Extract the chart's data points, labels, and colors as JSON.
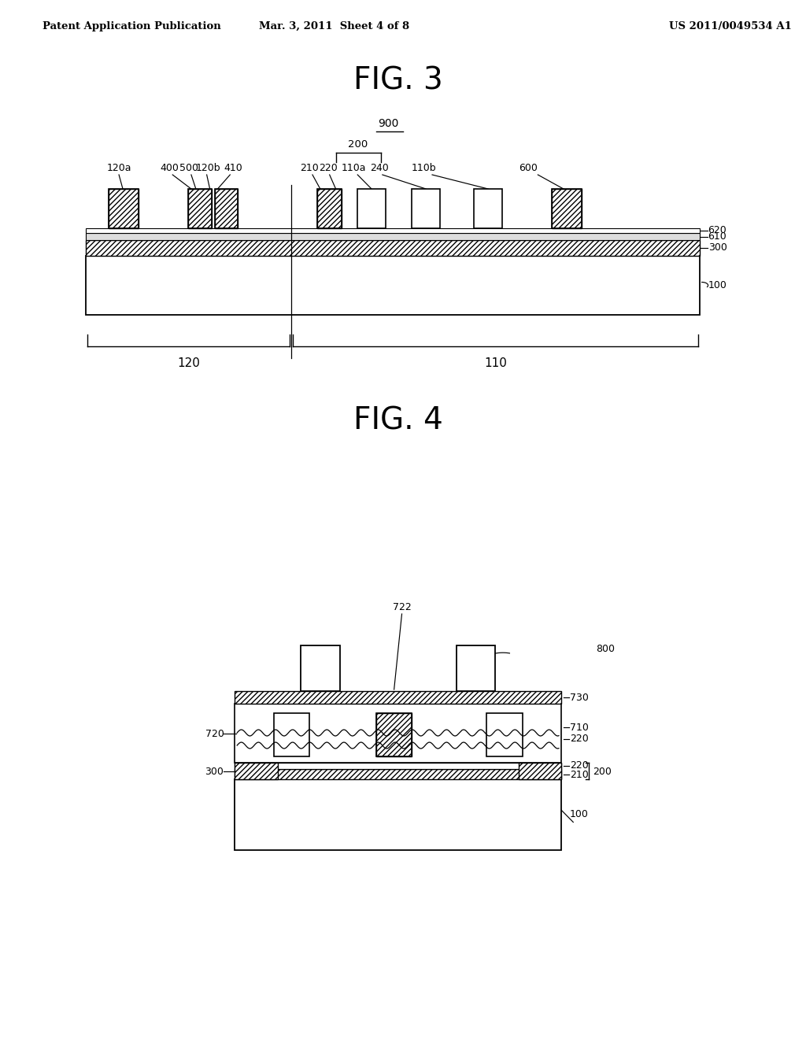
{
  "bg_color": "#ffffff",
  "header_left": "Patent Application Publication",
  "header_mid": "Mar. 3, 2011  Sheet 4 of 8",
  "header_right": "US 2011/0049534 A1",
  "fig3_title": "FIG. 3",
  "fig4_title": "FIG. 4"
}
